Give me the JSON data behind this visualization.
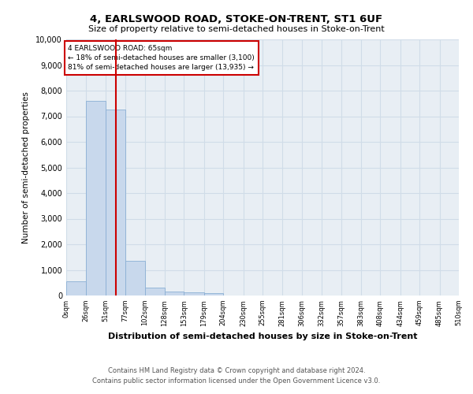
{
  "title1": "4, EARLSWOOD ROAD, STOKE-ON-TRENT, ST1 6UF",
  "title2": "Size of property relative to semi-detached houses in Stoke-on-Trent",
  "xlabel": "Distribution of semi-detached houses by size in Stoke-on-Trent",
  "ylabel": "Number of semi-detached properties",
  "footer1": "Contains HM Land Registry data © Crown copyright and database right 2024.",
  "footer2": "Contains public sector information licensed under the Open Government Licence v3.0.",
  "property_size": 65,
  "property_label": "4 EARLSWOOD ROAD: 65sqm",
  "pct_smaller": 18,
  "num_smaller": 3100,
  "pct_larger": 81,
  "num_larger": 13935,
  "bin_edges": [
    0,
    26,
    51,
    77,
    102,
    128,
    153,
    179,
    204,
    230,
    255,
    281,
    306,
    332,
    357,
    383,
    408,
    434,
    459,
    485,
    510
  ],
  "bin_counts": [
    550,
    7600,
    7250,
    1350,
    310,
    160,
    130,
    90,
    0,
    0,
    0,
    0,
    0,
    0,
    0,
    0,
    0,
    0,
    0,
    0
  ],
  "bar_color": "#c8d8ec",
  "bar_edge_color": "#8aafd4",
  "vline_color": "#cc0000",
  "annotation_box_color": "#cc0000",
  "grid_color": "#d0dce8",
  "plot_bg_color": "#e8eef4",
  "ylim": [
    0,
    10000
  ],
  "yticks": [
    0,
    1000,
    2000,
    3000,
    4000,
    5000,
    6000,
    7000,
    8000,
    9000,
    10000
  ]
}
